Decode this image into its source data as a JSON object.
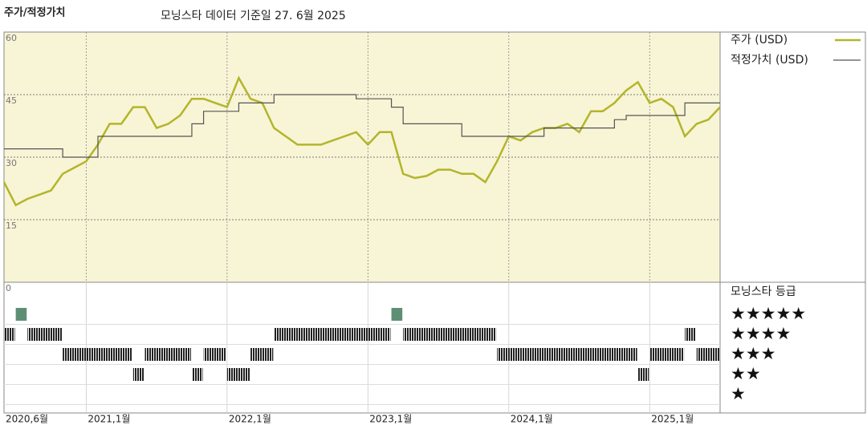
{
  "chart_data": [
    {
      "type": "line",
      "title": "주가/적정가치",
      "subtitle": "모닝스타 데이터 기준일 27. 6월 2025",
      "xlim": [
        "2020-06",
        "2025-07"
      ],
      "xticks": [
        {
          "value": "2020-06",
          "label": "2020,6월"
        },
        {
          "value": "2021-01",
          "label": "2021,1월"
        },
        {
          "value": "2022-01",
          "label": "2022,1월"
        },
        {
          "value": "2023-01",
          "label": "2023,1월"
        },
        {
          "value": "2024-01",
          "label": "2024,1월"
        },
        {
          "value": "2025-01",
          "label": "2025,1월"
        }
      ],
      "ylim": [
        0,
        60
      ],
      "yticks": [
        0,
        15,
        30,
        45,
        60
      ],
      "grid": true,
      "series": [
        {
          "name": "주가 (USD)",
          "color": "#b3b52a",
          "step": false,
          "x": [
            "2020-06",
            "2020-07",
            "2020-08",
            "2020-09",
            "2020-10",
            "2020-11",
            "2020-12",
            "2021-01",
            "2021-02",
            "2021-03",
            "2021-04",
            "2021-05",
            "2021-06",
            "2021-07",
            "2021-08",
            "2021-09",
            "2021-10",
            "2021-11",
            "2021-12",
            "2022-01",
            "2022-02",
            "2022-03",
            "2022-04",
            "2022-05",
            "2022-06",
            "2022-07",
            "2022-08",
            "2022-09",
            "2022-10",
            "2022-11",
            "2022-12",
            "2023-01",
            "2023-02",
            "2023-03",
            "2023-04",
            "2023-05",
            "2023-06",
            "2023-07",
            "2023-08",
            "2023-09",
            "2023-10",
            "2023-11",
            "2023-12",
            "2024-01",
            "2024-02",
            "2024-03",
            "2024-04",
            "2024-05",
            "2024-06",
            "2024-07",
            "2024-08",
            "2024-09",
            "2024-10",
            "2024-11",
            "2024-12",
            "2025-01",
            "2025-02",
            "2025-03",
            "2025-04",
            "2025-05",
            "2025-06",
            "2025-07"
          ],
          "values": [
            24,
            18.5,
            20,
            21,
            22,
            26,
            27.5,
            29,
            33,
            38,
            38,
            42,
            42,
            37,
            38,
            40,
            44,
            44,
            43,
            42,
            49,
            44,
            43,
            37,
            35,
            33,
            33,
            33,
            34,
            35,
            36,
            33,
            36,
            36,
            26,
            25,
            25.5,
            27,
            27,
            26,
            26,
            24,
            29,
            35,
            34,
            36,
            37,
            37,
            38,
            36,
            41,
            41,
            43,
            46,
            48,
            43,
            44,
            42,
            35,
            38,
            39,
            42
          ]
        },
        {
          "name": "적정가치 (USD)",
          "color": "#555555",
          "step": true,
          "x": [
            "2020-06",
            "2020-11",
            "2021-02",
            "2021-10",
            "2021-11",
            "2022-02",
            "2022-05",
            "2022-12",
            "2023-03",
            "2023-04",
            "2023-09",
            "2024-04",
            "2024-10",
            "2024-11",
            "2025-04",
            "2025-07"
          ],
          "values": [
            32,
            30,
            35,
            38,
            41,
            43,
            45,
            44,
            42,
            38,
            35,
            37,
            39,
            40,
            43,
            43
          ]
        }
      ]
    },
    {
      "type": "timeline",
      "title": "모닝스타 등급",
      "levels": [
        5,
        4,
        3,
        2,
        1
      ],
      "level_labels": [
        "★★★★★",
        "★★★★",
        "★★★",
        "★★",
        "★"
      ],
      "colors": {
        "5": "#5e8f75",
        "other": "#222222"
      },
      "periods": [
        {
          "start": "2020-06",
          "end": "2020-07",
          "stars": 4
        },
        {
          "start": "2020-07",
          "end": "2020-08",
          "stars": 5
        },
        {
          "start": "2020-08",
          "end": "2020-11",
          "stars": 4
        },
        {
          "start": "2020-11",
          "end": "2021-05",
          "stars": 3
        },
        {
          "start": "2021-05",
          "end": "2021-06",
          "stars": 2
        },
        {
          "start": "2021-06",
          "end": "2021-10",
          "stars": 3
        },
        {
          "start": "2021-10",
          "end": "2021-11",
          "stars": 2
        },
        {
          "start": "2021-11",
          "end": "2022-01",
          "stars": 3
        },
        {
          "start": "2022-01",
          "end": "2022-03",
          "stars": 2
        },
        {
          "start": "2022-03",
          "end": "2022-05",
          "stars": 3
        },
        {
          "start": "2022-05",
          "end": "2023-03",
          "stars": 4
        },
        {
          "start": "2023-03",
          "end": "2023-04",
          "stars": 5
        },
        {
          "start": "2023-04",
          "end": "2023-12",
          "stars": 4
        },
        {
          "start": "2023-12",
          "end": "2024-12",
          "stars": 3
        },
        {
          "start": "2024-12",
          "end": "2025-01",
          "stars": 2
        },
        {
          "start": "2025-01",
          "end": "2025-04",
          "stars": 3
        },
        {
          "start": "2025-04",
          "end": "2025-05",
          "stars": 4
        },
        {
          "start": "2025-05",
          "end": "2025-07",
          "stars": 3
        }
      ]
    }
  ]
}
